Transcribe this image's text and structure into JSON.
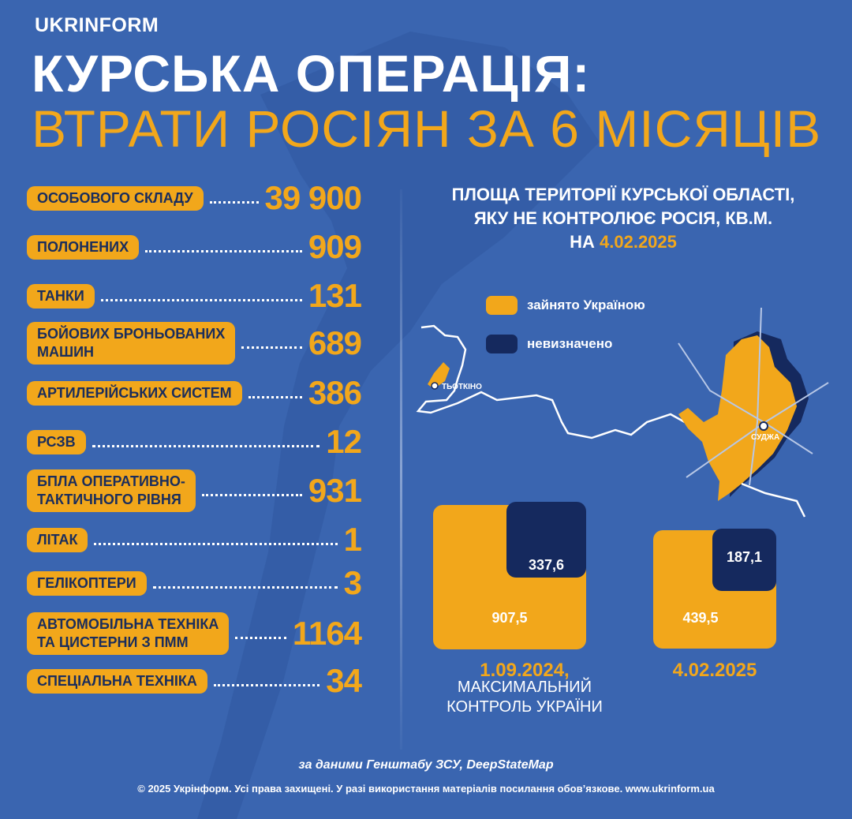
{
  "header": {
    "logo": "UKRINFORM",
    "title_line1": "КУРСЬКА ОПЕРАЦІЯ:",
    "title_line2": "ВТРАТИ РОСІЯН ЗА 6 МІСЯЦІВ"
  },
  "losses": [
    {
      "label": "ОСОБОВОГО СКЛАДУ",
      "value": "39 900"
    },
    {
      "label": "ПОЛОНЕНИХ",
      "value": "909"
    },
    {
      "label": "ТАНКИ",
      "value": "131"
    },
    {
      "label": "БОЙОВИХ БРОНЬОВАНИХ\nМАШИН",
      "value": "689"
    },
    {
      "label": "АРТИЛЕРІЙСЬКИХ СИСТЕМ",
      "value": "386"
    },
    {
      "label": "РСЗВ",
      "value": "12"
    },
    {
      "label": "БПЛА ОПЕРАТИВНО-\nТАКТИЧНОГО РІВНЯ",
      "value": "931"
    },
    {
      "label": "ЛІТАК",
      "value": "1"
    },
    {
      "label": "ГЕЛІКОПТЕРИ",
      "value": "3"
    },
    {
      "label": "АВТОМОБІЛЬНА ТЕХНІКА\nТА ЦИСТЕРНИ З ПММ",
      "value": "1164"
    },
    {
      "label": "СПЕЦІАЛЬНА ТЕХНІКА",
      "value": "34"
    }
  ],
  "territory": {
    "title_line1": "ПЛОЩА ТЕРИТОРІЇ КУРСЬКОЇ ОБЛАСТІ,",
    "title_line2": "ЯКУ НЕ КОНТРОЛЮЄ РОСІЯ, КВ.М.",
    "title_line3_prefix": "НА",
    "title_line3_date": "4.02.2025",
    "legend_occupied": "зайнято Україною",
    "legend_undefined": "невизначено",
    "town_tyotkino": "ТЬОТКІНО",
    "town_sudzha": "СУДЖА",
    "colors": {
      "occupied": "#f2a71b",
      "undefined": "#15295e",
      "background": "#3a65b0"
    }
  },
  "comparison": [
    {
      "date": "1.09.2024,",
      "caption": "МАКСИМАЛЬНИЙ\nКОНТРОЛЬ УКРАЇНИ",
      "occupied": "907,5",
      "undefined": "337,6"
    },
    {
      "date": "4.02.2025",
      "caption": "",
      "occupied": "439,5",
      "undefined": "187,1"
    }
  ],
  "footer": {
    "source": "за даними Генштабу ЗСУ, DeepStateMap",
    "copyright": "© 2025 Укрінформ. Усі права захищені. У разі використання матеріалів посилання обов’язкове. www.ukrinform.ua"
  }
}
